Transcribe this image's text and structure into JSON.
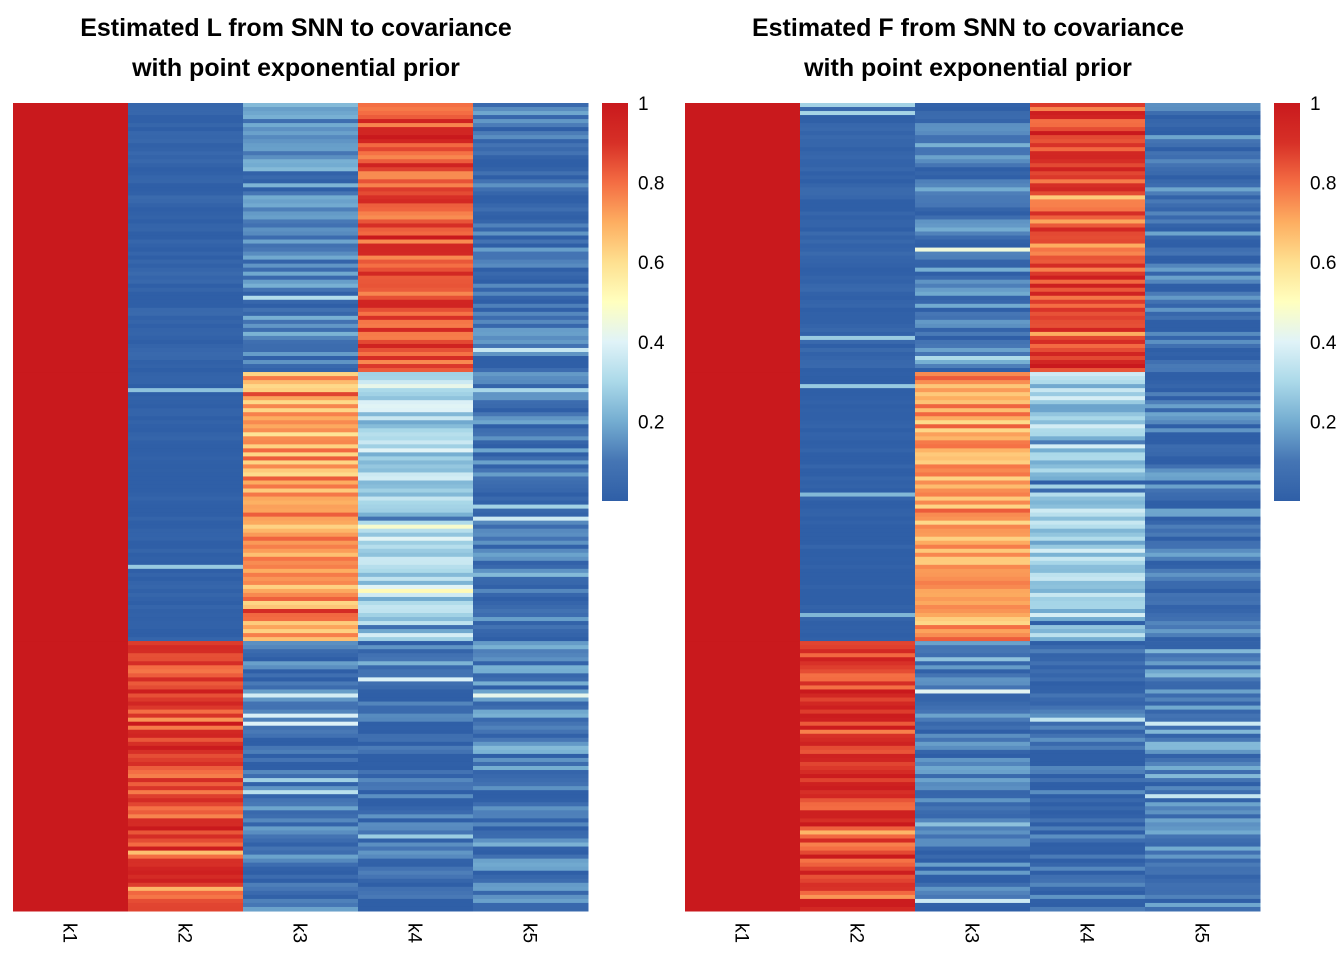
{
  "palette": [
    "#2f5fa7",
    "#4575b4",
    "#74add1",
    "#abd9e9",
    "#e0f3f8",
    "#ffffbf",
    "#fee090",
    "#fdae61",
    "#f46d43",
    "#d73027",
    "#c9191d"
  ],
  "chart_data": [
    {
      "type": "heatmap",
      "title_line1": "Estimated L from SNN to covariance",
      "title_line2": "with point exponential prior",
      "columns": [
        "k1",
        "k2",
        "k3",
        "k4",
        "k5"
      ],
      "legend_ticks": [
        "1",
        "0.8",
        "0.6",
        "0.4",
        "0.2"
      ],
      "legend_range": [
        0,
        1
      ],
      "row_blocks": [
        {
          "rows_fraction": 0.333,
          "levels": {
            "k1": 1.0,
            "k2": 0.02,
            "k3": 0.12,
            "k4": 0.85,
            "k5": 0.08
          }
        },
        {
          "rows_fraction": 0.333,
          "levels": {
            "k1": 1.0,
            "k2": 0.0,
            "k3": 0.72,
            "k4": 0.3,
            "k5": 0.08
          }
        },
        {
          "rows_fraction": 0.334,
          "levels": {
            "k1": 1.0,
            "k2": 0.88,
            "k3": 0.08,
            "k4": 0.05,
            "k5": 0.12
          }
        }
      ]
    },
    {
      "type": "heatmap",
      "title_line1": "Estimated F from SNN to covariance",
      "title_line2": "with point exponential prior",
      "columns": [
        "k1",
        "k2",
        "k3",
        "k4",
        "k5"
      ],
      "legend_ticks": [
        "1",
        "0.8",
        "0.6",
        "0.4",
        "0.2"
      ],
      "legend_range": [
        0,
        1
      ],
      "row_blocks": [
        {
          "rows_fraction": 0.333,
          "levels": {
            "k1": 1.0,
            "k2": 0.02,
            "k3": 0.1,
            "k4": 0.87,
            "k5": 0.08
          }
        },
        {
          "rows_fraction": 0.333,
          "levels": {
            "k1": 1.0,
            "k2": 0.0,
            "k3": 0.72,
            "k4": 0.28,
            "k5": 0.08
          }
        },
        {
          "rows_fraction": 0.334,
          "levels": {
            "k1": 1.0,
            "k2": 0.88,
            "k3": 0.08,
            "k4": 0.05,
            "k5": 0.12
          }
        }
      ]
    }
  ]
}
